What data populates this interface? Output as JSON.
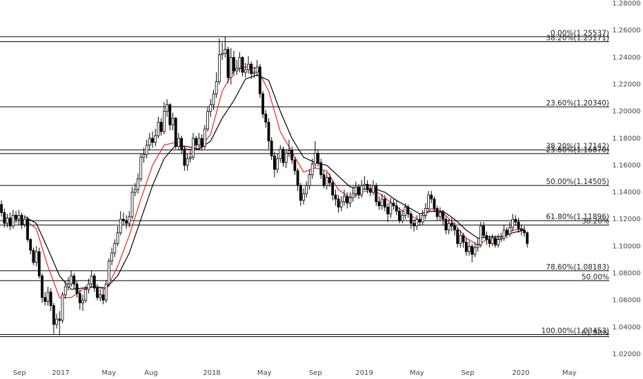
{
  "chart_data": {
    "type": "candlestick",
    "candles": [
      [
        1.131,
        1.134,
        1.122,
        1.125
      ],
      [
        1.125,
        1.128,
        1.114,
        1.117
      ],
      [
        1.117,
        1.124,
        1.114,
        1.121
      ],
      [
        1.121,
        1.125,
        1.112,
        1.115
      ],
      [
        1.115,
        1.127,
        1.113,
        1.123
      ],
      [
        1.123,
        1.126,
        1.117,
        1.12
      ],
      [
        1.12,
        1.127,
        1.116,
        1.123
      ],
      [
        1.123,
        1.125,
        1.113,
        1.116
      ],
      [
        1.116,
        1.123,
        1.114,
        1.12
      ],
      [
        1.12,
        1.122,
        1.103,
        1.105
      ],
      [
        1.105,
        1.106,
        1.094,
        1.097
      ],
      [
        1.097,
        1.099,
        1.086,
        1.088
      ],
      [
        1.088,
        1.1,
        1.085,
        1.096
      ],
      [
        1.096,
        1.099,
        1.076,
        1.078
      ],
      [
        1.078,
        1.08,
        1.058,
        1.062
      ],
      [
        1.062,
        1.066,
        1.056,
        1.059
      ],
      [
        1.059,
        1.07,
        1.056,
        1.066
      ],
      [
        1.066,
        1.069,
        1.052,
        1.056
      ],
      [
        1.056,
        1.058,
        1.035,
        1.042
      ],
      [
        1.042,
        1.05,
        1.039,
        1.046
      ],
      [
        1.046,
        1.052,
        1.034,
        1.045
      ],
      [
        1.045,
        1.066,
        1.043,
        1.064
      ],
      [
        1.064,
        1.074,
        1.061,
        1.07
      ],
      [
        1.07,
        1.077,
        1.067,
        1.072
      ],
      [
        1.072,
        1.082,
        1.07,
        1.078
      ],
      [
        1.078,
        1.08,
        1.068,
        1.072
      ],
      [
        1.072,
        1.074,
        1.062,
        1.065
      ],
      [
        1.065,
        1.068,
        1.053,
        1.058
      ],
      [
        1.058,
        1.064,
        1.052,
        1.06
      ],
      [
        1.06,
        1.071,
        1.058,
        1.068
      ],
      [
        1.068,
        1.076,
        1.065,
        1.072
      ],
      [
        1.072,
        1.082,
        1.07,
        1.078
      ],
      [
        1.078,
        1.08,
        1.066,
        1.069
      ],
      [
        1.069,
        1.072,
        1.06,
        1.062
      ],
      [
        1.062,
        1.068,
        1.059,
        1.064
      ],
      [
        1.064,
        1.068,
        1.057,
        1.06
      ],
      [
        1.06,
        1.075,
        1.058,
        1.072
      ],
      [
        1.072,
        1.091,
        1.07,
        1.089
      ],
      [
        1.089,
        1.099,
        1.086,
        1.095
      ],
      [
        1.095,
        1.105,
        1.092,
        1.102
      ],
      [
        1.102,
        1.115,
        1.1,
        1.11
      ],
      [
        1.11,
        1.126,
        1.108,
        1.12
      ],
      [
        1.12,
        1.125,
        1.116,
        1.119
      ],
      [
        1.119,
        1.123,
        1.113,
        1.117
      ],
      [
        1.117,
        1.126,
        1.114,
        1.122
      ],
      [
        1.122,
        1.144,
        1.12,
        1.14
      ],
      [
        1.14,
        1.147,
        1.137,
        1.142
      ],
      [
        1.142,
        1.154,
        1.139,
        1.15
      ],
      [
        1.15,
        1.169,
        1.148,
        1.166
      ],
      [
        1.166,
        1.173,
        1.162,
        1.168
      ],
      [
        1.168,
        1.179,
        1.165,
        1.175
      ],
      [
        1.175,
        1.184,
        1.171,
        1.18
      ],
      [
        1.18,
        1.185,
        1.173,
        1.177
      ],
      [
        1.177,
        1.187,
        1.174,
        1.182
      ],
      [
        1.182,
        1.196,
        1.18,
        1.192
      ],
      [
        1.192,
        1.195,
        1.182,
        1.185
      ],
      [
        1.185,
        1.207,
        1.183,
        1.2
      ],
      [
        1.2,
        1.209,
        1.196,
        1.205
      ],
      [
        1.205,
        1.206,
        1.186,
        1.19
      ],
      [
        1.19,
        1.199,
        1.186,
        1.195
      ],
      [
        1.195,
        1.196,
        1.172,
        1.174
      ],
      [
        1.174,
        1.184,
        1.171,
        1.18
      ],
      [
        1.18,
        1.182,
        1.169,
        1.172
      ],
      [
        1.172,
        1.174,
        1.156,
        1.16
      ],
      [
        1.16,
        1.169,
        1.156,
        1.165
      ],
      [
        1.165,
        1.171,
        1.162,
        1.166
      ],
      [
        1.166,
        1.184,
        1.164,
        1.18
      ],
      [
        1.18,
        1.182,
        1.172,
        1.175
      ],
      [
        1.175,
        1.184,
        1.172,
        1.18
      ],
      [
        1.18,
        1.183,
        1.171,
        1.174
      ],
      [
        1.174,
        1.19,
        1.172,
        1.187
      ],
      [
        1.187,
        1.203,
        1.185,
        1.2
      ],
      [
        1.2,
        1.209,
        1.196,
        1.205
      ],
      [
        1.205,
        1.216,
        1.201,
        1.213
      ],
      [
        1.213,
        1.229,
        1.21,
        1.222
      ],
      [
        1.222,
        1.254,
        1.22,
        1.242
      ],
      [
        1.242,
        1.251,
        1.238,
        1.243
      ],
      [
        1.243,
        1.2555,
        1.24,
        1.246
      ],
      [
        1.246,
        1.248,
        1.221,
        1.225
      ],
      [
        1.225,
        1.247,
        1.22,
        1.24
      ],
      [
        1.24,
        1.245,
        1.226,
        1.23
      ],
      [
        1.23,
        1.238,
        1.227,
        1.232
      ],
      [
        1.232,
        1.244,
        1.229,
        1.24
      ],
      [
        1.24,
        1.241,
        1.226,
        1.229
      ],
      [
        1.229,
        1.236,
        1.225,
        1.231
      ],
      [
        1.231,
        1.241,
        1.228,
        1.235
      ],
      [
        1.235,
        1.237,
        1.224,
        1.228
      ],
      [
        1.228,
        1.233,
        1.225,
        1.229
      ],
      [
        1.229,
        1.238,
        1.226,
        1.233
      ],
      [
        1.233,
        1.235,
        1.21,
        1.213
      ],
      [
        1.213,
        1.215,
        1.195,
        1.198
      ],
      [
        1.198,
        1.201,
        1.188,
        1.192
      ],
      [
        1.192,
        1.195,
        1.172,
        1.178
      ],
      [
        1.178,
        1.181,
        1.164,
        1.167
      ],
      [
        1.167,
        1.17,
        1.151,
        1.157
      ],
      [
        1.157,
        1.169,
        1.154,
        1.165
      ],
      [
        1.165,
        1.175,
        1.162,
        1.172
      ],
      [
        1.172,
        1.174,
        1.159,
        1.162
      ],
      [
        1.162,
        1.172,
        1.158,
        1.169
      ],
      [
        1.169,
        1.179,
        1.166,
        1.171
      ],
      [
        1.171,
        1.174,
        1.161,
        1.164
      ],
      [
        1.164,
        1.166,
        1.153,
        1.156
      ],
      [
        1.156,
        1.158,
        1.141,
        1.145
      ],
      [
        1.145,
        1.147,
        1.13,
        1.134
      ],
      [
        1.134,
        1.143,
        1.131,
        1.139
      ],
      [
        1.139,
        1.148,
        1.136,
        1.145
      ],
      [
        1.145,
        1.157,
        1.142,
        1.153
      ],
      [
        1.153,
        1.165,
        1.15,
        1.161
      ],
      [
        1.161,
        1.178,
        1.158,
        1.169
      ],
      [
        1.169,
        1.172,
        1.159,
        1.162
      ],
      [
        1.162,
        1.165,
        1.15,
        1.153
      ],
      [
        1.153,
        1.156,
        1.143,
        1.145
      ],
      [
        1.145,
        1.155,
        1.142,
        1.151
      ],
      [
        1.151,
        1.154,
        1.144,
        1.147
      ],
      [
        1.147,
        1.149,
        1.134,
        1.138
      ],
      [
        1.138,
        1.142,
        1.13,
        1.135
      ],
      [
        1.135,
        1.138,
        1.125,
        1.129
      ],
      [
        1.129,
        1.137,
        1.126,
        1.133
      ],
      [
        1.133,
        1.142,
        1.13,
        1.137
      ],
      [
        1.137,
        1.14,
        1.128,
        1.132
      ],
      [
        1.132,
        1.14,
        1.129,
        1.136
      ],
      [
        1.136,
        1.144,
        1.133,
        1.139
      ],
      [
        1.139,
        1.148,
        1.136,
        1.144
      ],
      [
        1.144,
        1.146,
        1.135,
        1.138
      ],
      [
        1.138,
        1.149,
        1.136,
        1.145
      ],
      [
        1.145,
        1.152,
        1.142,
        1.146
      ],
      [
        1.146,
        1.149,
        1.139,
        1.142
      ],
      [
        1.142,
        1.146,
        1.137,
        1.14
      ],
      [
        1.14,
        1.149,
        1.138,
        1.145
      ],
      [
        1.145,
        1.147,
        1.13,
        1.133
      ],
      [
        1.133,
        1.137,
        1.127,
        1.13
      ],
      [
        1.13,
        1.139,
        1.127,
        1.135
      ],
      [
        1.135,
        1.138,
        1.126,
        1.129
      ],
      [
        1.129,
        1.132,
        1.118,
        1.124
      ],
      [
        1.124,
        1.136,
        1.121,
        1.132
      ],
      [
        1.132,
        1.135,
        1.127,
        1.13
      ],
      [
        1.13,
        1.134,
        1.123,
        1.126
      ],
      [
        1.126,
        1.129,
        1.117,
        1.119
      ],
      [
        1.119,
        1.127,
        1.117,
        1.123
      ],
      [
        1.123,
        1.132,
        1.12,
        1.129
      ],
      [
        1.129,
        1.131,
        1.121,
        1.124
      ],
      [
        1.124,
        1.126,
        1.113,
        1.117
      ],
      [
        1.117,
        1.12,
        1.111,
        1.115
      ],
      [
        1.115,
        1.123,
        1.112,
        1.12
      ],
      [
        1.12,
        1.124,
        1.115,
        1.118
      ],
      [
        1.118,
        1.127,
        1.116,
        1.123
      ],
      [
        1.123,
        1.132,
        1.12,
        1.128
      ],
      [
        1.128,
        1.141,
        1.126,
        1.138
      ],
      [
        1.138,
        1.141,
        1.132,
        1.135
      ],
      [
        1.135,
        1.137,
        1.125,
        1.128
      ],
      [
        1.128,
        1.13,
        1.119,
        1.122
      ],
      [
        1.122,
        1.129,
        1.119,
        1.125
      ],
      [
        1.125,
        1.127,
        1.116,
        1.12
      ],
      [
        1.12,
        1.122,
        1.109,
        1.112
      ],
      [
        1.112,
        1.12,
        1.109,
        1.117
      ],
      [
        1.117,
        1.121,
        1.111,
        1.115
      ],
      [
        1.115,
        1.118,
        1.108,
        1.112
      ],
      [
        1.112,
        1.114,
        1.099,
        1.102
      ],
      [
        1.102,
        1.112,
        1.099,
        1.108
      ],
      [
        1.108,
        1.11,
        1.099,
        1.103
      ],
      [
        1.103,
        1.106,
        1.093,
        1.096
      ],
      [
        1.096,
        1.104,
        1.093,
        1.1
      ],
      [
        1.1,
        1.102,
        1.088,
        1.094
      ],
      [
        1.094,
        1.103,
        1.092,
        1.099
      ],
      [
        1.099,
        1.106,
        1.096,
        1.101
      ],
      [
        1.101,
        1.118,
        1.099,
        1.115
      ],
      [
        1.115,
        1.118,
        1.106,
        1.108
      ],
      [
        1.108,
        1.111,
        1.101,
        1.105
      ],
      [
        1.105,
        1.108,
        1.099,
        1.102
      ],
      [
        1.102,
        1.109,
        1.1,
        1.106
      ],
      [
        1.106,
        1.108,
        1.099,
        1.101
      ],
      [
        1.101,
        1.109,
        1.099,
        1.105
      ],
      [
        1.105,
        1.11,
        1.103,
        1.106
      ],
      [
        1.106,
        1.116,
        1.104,
        1.112
      ],
      [
        1.112,
        1.114,
        1.106,
        1.109
      ],
      [
        1.109,
        1.118,
        1.107,
        1.114
      ],
      [
        1.114,
        1.124,
        1.111,
        1.12
      ],
      [
        1.12,
        1.123,
        1.115,
        1.118
      ],
      [
        1.118,
        1.121,
        1.11,
        1.113
      ],
      [
        1.113,
        1.116,
        1.108,
        1.112
      ],
      [
        1.112,
        1.115,
        1.107,
        1.11
      ],
      [
        1.11,
        1.111,
        1.099,
        1.102
      ]
    ],
    "up_color": "#ffffff",
    "down_color": "#000000",
    "outline_color": "#000000",
    "lines": [
      {
        "color": "#e8261f",
        "x": [
          8,
          12,
          16,
          20,
          24,
          28,
          32,
          36,
          40,
          44,
          48,
          52,
          56,
          60,
          64,
          68,
          72,
          76,
          80,
          84,
          88,
          92,
          96,
          100,
          104,
          108,
          112,
          116,
          120,
          124,
          128,
          132,
          136,
          140,
          144,
          148,
          152,
          156,
          160,
          164,
          168,
          172,
          176,
          180
        ],
        "values": [
          1.12,
          1.113,
          1.085,
          1.062,
          1.062,
          1.068,
          1.07,
          1.068,
          1.085,
          1.108,
          1.135,
          1.16,
          1.175,
          1.177,
          1.172,
          1.172,
          1.183,
          1.215,
          1.23,
          1.233,
          1.232,
          1.215,
          1.185,
          1.17,
          1.155,
          1.158,
          1.156,
          1.142,
          1.136,
          1.14,
          1.142,
          1.136,
          1.129,
          1.124,
          1.119,
          1.128,
          1.125,
          1.116,
          1.106,
          1.101,
          1.106,
          1.105,
          1.112,
          1.113
        ]
      },
      {
        "color": "#000000",
        "x": [
          8,
          12,
          16,
          20,
          24,
          28,
          32,
          36,
          40,
          44,
          48,
          52,
          56,
          60,
          64,
          68,
          72,
          76,
          80,
          84,
          88,
          92,
          96,
          100,
          104,
          108,
          112,
          116,
          120,
          124,
          128,
          132,
          136,
          140,
          144,
          148,
          152,
          156,
          160,
          164,
          168,
          172,
          176,
          180
        ],
        "values": [
          1.122,
          1.117,
          1.098,
          1.078,
          1.068,
          1.069,
          1.07,
          1.069,
          1.078,
          1.095,
          1.12,
          1.145,
          1.165,
          1.175,
          1.174,
          1.172,
          1.178,
          1.195,
          1.208,
          1.224,
          1.227,
          1.223,
          1.2,
          1.18,
          1.166,
          1.162,
          1.16,
          1.152,
          1.144,
          1.142,
          1.143,
          1.14,
          1.134,
          1.129,
          1.124,
          1.126,
          1.126,
          1.12,
          1.112,
          1.106,
          1.107,
          1.107,
          1.11,
          1.112
        ]
      }
    ],
    "levels": [
      {
        "value": 1.25537,
        "label": "0.00%(1.25537)"
      },
      {
        "value": 1.25171,
        "label": "38.20%(1.25171)"
      },
      {
        "value": 1.2034,
        "label": "23.60%(1.20340)"
      },
      {
        "value": 1.17142,
        "label": "38.20%(1.17142)"
      },
      {
        "value": 1.1687,
        "label": "23.60%(1.16870)"
      },
      {
        "value": 1.14505,
        "label": "50.00%(1.14505)"
      },
      {
        "value": 1.11896,
        "label": "61.80%(1.11896)"
      },
      {
        "value": 1.1157,
        "label": "38.20%"
      },
      {
        "value": 1.08183,
        "label": "78.60%(1.08183)"
      },
      {
        "value": 1.0745,
        "label": "50.00%"
      },
      {
        "value": 1.03453,
        "label": "100.00%(1.03453)"
      },
      {
        "value": 1.033,
        "label": "61.80%"
      }
    ],
    "level_color": "#000000",
    "xlim": [
      -0.5,
      208.5
    ],
    "xticks": [
      {
        "value": 6.2,
        "label": "Sep"
      },
      {
        "value": 20.4,
        "label": "2017"
      },
      {
        "value": 37.0,
        "label": "May"
      },
      {
        "value": 51.5,
        "label": "Aug"
      },
      {
        "value": 72.4,
        "label": "2018"
      },
      {
        "value": 90.5,
        "label": "May"
      },
      {
        "value": 108.1,
        "label": "Sep"
      },
      {
        "value": 124.9,
        "label": "2019"
      },
      {
        "value": 143.0,
        "label": "May"
      },
      {
        "value": 160.5,
        "label": "Sep"
      },
      {
        "value": 178.8,
        "label": "2020"
      },
      {
        "value": 195.5,
        "label": "May"
      }
    ],
    "ylim": [
      1.0128,
      1.2826
    ],
    "yticks": [
      {
        "value": 1.28,
        "label": "1.28000"
      },
      {
        "value": 1.26,
        "label": "1.26000"
      },
      {
        "value": 1.24,
        "label": "1.24000"
      },
      {
        "value": 1.22,
        "label": "1.22000"
      },
      {
        "value": 1.2,
        "label": "1.20000"
      },
      {
        "value": 1.18,
        "label": "1.18000"
      },
      {
        "value": 1.16,
        "label": "1.16000"
      },
      {
        "value": 1.14,
        "label": "1.14000"
      },
      {
        "value": 1.12,
        "label": "1.12000"
      },
      {
        "value": 1.1,
        "label": "1.10000"
      },
      {
        "value": 1.08,
        "label": "1.08000"
      },
      {
        "value": 1.06,
        "label": "1.06000"
      },
      {
        "value": 1.04,
        "label": "1.04000"
      },
      {
        "value": 1.02,
        "label": "1.02000"
      }
    ],
    "grid": false
  }
}
